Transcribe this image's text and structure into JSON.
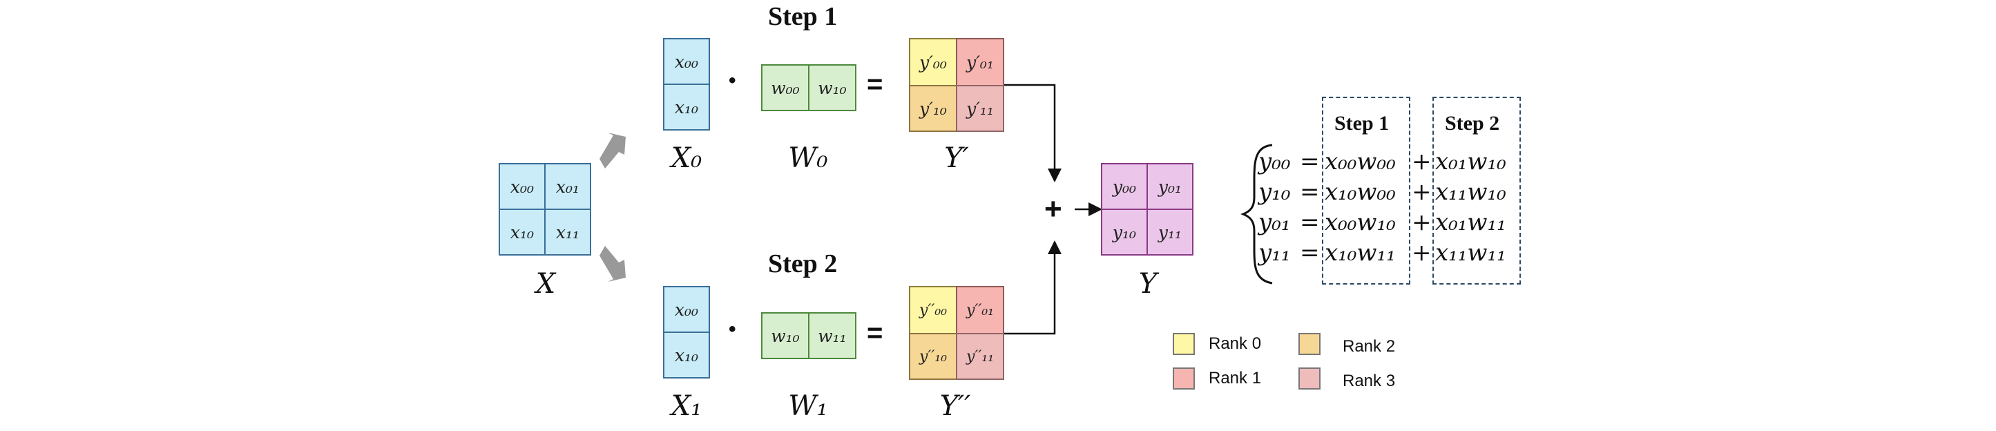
{
  "colors": {
    "blue": "#c9ecf8",
    "green": "#d8efcf",
    "pink": "#ecc6ea",
    "rank0": "#fdf7a6",
    "rank1": "#f7b5b1",
    "rank2": "#f7d795",
    "rank3": "#efbcbc"
  },
  "matrix_x": {
    "label": "X",
    "cells": [
      "x00",
      "x01",
      "x10",
      "x11"
    ],
    "cells_display": [
      "𝑥₀₀",
      "𝑥₀₁",
      "𝑥₁₀",
      "𝑥₁₁"
    ]
  },
  "steps": [
    {
      "title": "Step 1",
      "x_block": {
        "label": "X₀",
        "cells": [
          "𝑥₀₀",
          "𝑥₁₀"
        ]
      },
      "w_block": {
        "label": "W₀",
        "cells": [
          "𝑤₀₀",
          "𝑤₁₀"
        ]
      },
      "y_block": {
        "label": "Y′",
        "cells": [
          "𝑦′₀₀",
          "𝑦′₀₁",
          "𝑦′₁₀",
          "𝑦′₁₁"
        ]
      },
      "dot": "•",
      "equals": "="
    },
    {
      "title": "Step 2",
      "x_block": {
        "label": "X₁",
        "cells": [
          "𝑥₀₀",
          "𝑥₁₀"
        ]
      },
      "w_block": {
        "label": "W₁",
        "cells": [
          "𝑤₁₀",
          "𝑤₁₁"
        ]
      },
      "y_block": {
        "label": "Y′′",
        "cells": [
          "𝑦′′₀₀",
          "𝑦′′₀₁",
          "𝑦′′₁₀",
          "𝑦′′₁₁"
        ]
      },
      "dot": "•",
      "equals": "="
    }
  ],
  "plus": "+",
  "matrix_y": {
    "label": "Y",
    "cells": [
      "𝑦₀₀",
      "𝑦₀₁",
      "𝑦₁₀",
      "𝑦₁₁"
    ]
  },
  "equations": {
    "head_step1": "Step 1",
    "head_step2": "Step 2",
    "rows": [
      {
        "lhs": "𝑦₀₀",
        "eq": "=",
        "t1": "𝑥₀₀𝑤₀₀",
        "plus": "+",
        "t2": "𝑥₀₁𝑤₁₀"
      },
      {
        "lhs": "𝑦₁₀",
        "eq": "=",
        "t1": "𝑥₁₀𝑤₀₀",
        "plus": "+",
        "t2": "𝑥₁₁𝑤₁₀"
      },
      {
        "lhs": "𝑦₀₁",
        "eq": "=",
        "t1": "𝑥₀₀𝑤₁₀",
        "plus": "+",
        "t2": "𝑥₀₁𝑤₁₁"
      },
      {
        "lhs": "𝑦₁₁",
        "eq": "=",
        "t1": "𝑥₁₀𝑤₁₁",
        "plus": "+",
        "t2": "𝑥₁₁𝑤₁₁"
      }
    ]
  },
  "legend": [
    {
      "label": "Rank 0",
      "color": "#fdf7a6"
    },
    {
      "label": "Rank 1",
      "color": "#f7b5b1"
    },
    {
      "label": "Rank 2",
      "color": "#f7d795"
    },
    {
      "label": "Rank 3",
      "color": "#efbcbc"
    }
  ]
}
